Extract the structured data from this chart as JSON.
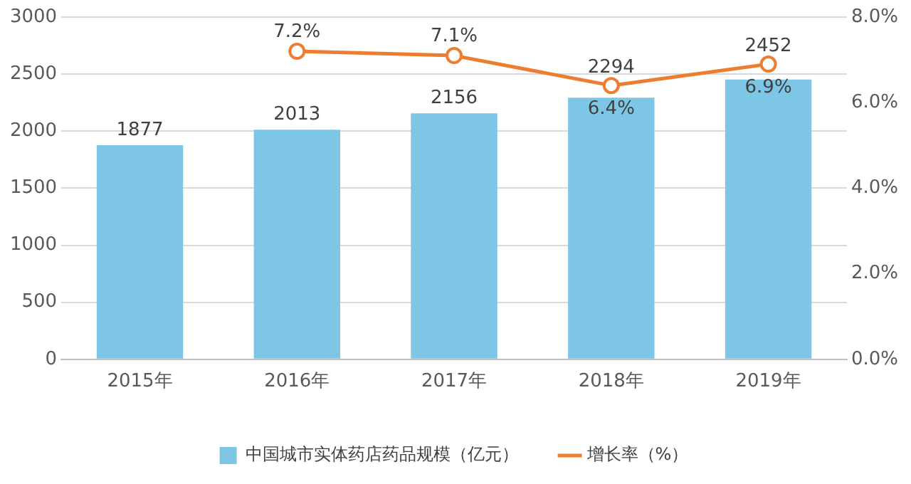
{
  "chart_data": {
    "type": "bar",
    "categories": [
      "2015年",
      "2016年",
      "2017年",
      "2018年",
      "2019年"
    ],
    "series": [
      {
        "name": "中国城市实体药店药品规模（亿元）",
        "color": "#7ec6e6",
        "values": [
          1877,
          2013,
          2156,
          2294,
          2452
        ],
        "value_labels": [
          "1877",
          "2013",
          "2156",
          "2294",
          "2452"
        ]
      },
      {
        "name": "增长率（%）",
        "type": "line",
        "axis": "y2",
        "color": "#ed7d31",
        "marker": "circle",
        "values": [
          null,
          7.2,
          7.1,
          6.4,
          6.9
        ],
        "value_labels": [
          null,
          "7.2%",
          "7.1%",
          "6.4%",
          "6.9%"
        ]
      }
    ],
    "ylim": [
      0,
      3000
    ],
    "yticks": [
      0,
      500,
      1000,
      1500,
      2000,
      2500,
      3000
    ],
    "y2lim": [
      0,
      8
    ],
    "y2ticks": [
      {
        "value": 0,
        "label": "0.0%"
      },
      {
        "value": 2,
        "label": "2.0%"
      },
      {
        "value": 4,
        "label": "4.0%"
      },
      {
        "value": 6,
        "label": "6.0%"
      },
      {
        "value": 8,
        "label": "8.0%"
      }
    ],
    "grid": "y",
    "legend": "bottom"
  }
}
